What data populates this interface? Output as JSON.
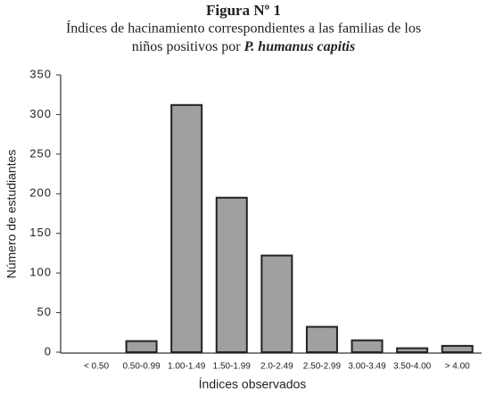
{
  "chart_data": {
    "type": "bar",
    "title": "Figura Nº 1",
    "subtitle": [
      "Índices de hacinamiento correspondientes a las familias de los",
      "niños positivos por",
      "P. humanus capitis"
    ],
    "x_label": "Índices observados",
    "y_label": "Número de estudiantes",
    "categories": [
      "< 0.50",
      "0.50-0.99",
      "1.00-1.49",
      "1.50-1.99",
      "2.0-2.49",
      "2.50-2.99",
      "3.00-3.49",
      "3.50-4.00",
      "> 4.00"
    ],
    "values": [
      0,
      14,
      312,
      195,
      122,
      32,
      15,
      5,
      8
    ],
    "color": "#a0a0a0",
    "ylim": [
      0,
      350
    ],
    "yticks": [
      0,
      50,
      100,
      150,
      200,
      250,
      300,
      350
    ],
    "grid": false
  }
}
